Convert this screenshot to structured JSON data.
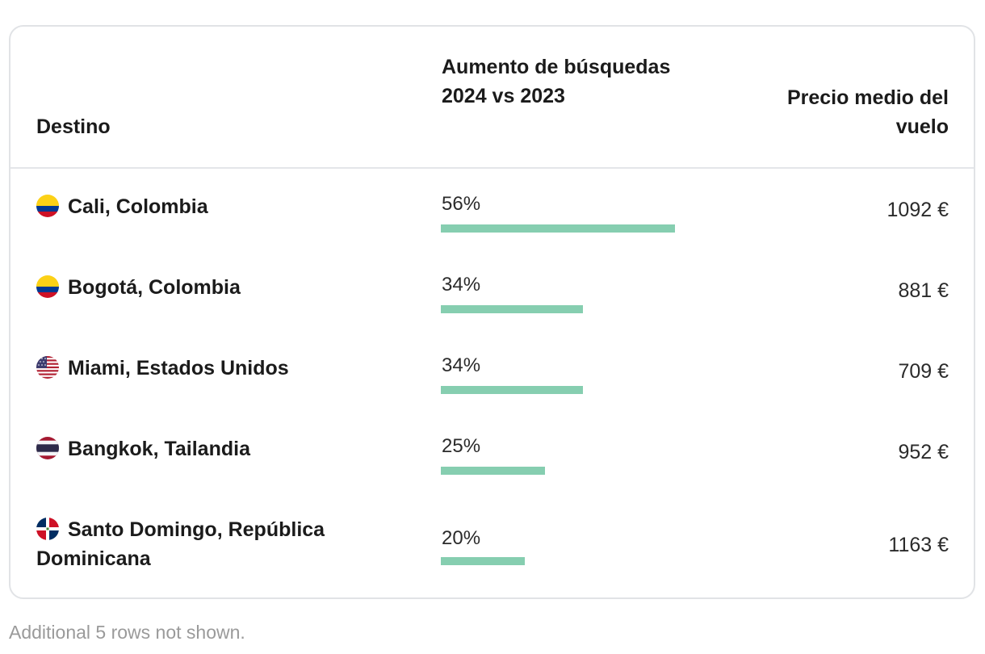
{
  "table": {
    "headers": {
      "destination": "Destino",
      "increase": "Aumento de búsquedas 2024 vs 2023",
      "price": "Precio medio del vuelo"
    },
    "bar_color": "#86ceb0",
    "bar_scale_max_percent": 100,
    "rows": [
      {
        "flag": "colombia-flag-icon",
        "destination": "Cali, Colombia",
        "increase_label": "56%",
        "increase_value": 56,
        "price": "1092 €"
      },
      {
        "flag": "colombia-flag-icon",
        "destination": "Bogotá, Colombia",
        "increase_label": "34%",
        "increase_value": 34,
        "price": "881 €"
      },
      {
        "flag": "usa-flag-icon",
        "destination": "Miami, Estados Unidos",
        "increase_label": "34%",
        "increase_value": 34,
        "price": "709 €"
      },
      {
        "flag": "thailand-flag-icon",
        "destination": "Bangkok, Tailandia",
        "increase_label": "25%",
        "increase_value": 25,
        "price": "952 €"
      },
      {
        "flag": "dominican-republic-flag-icon",
        "destination": "Santo Domingo, República Dominicana",
        "increase_label": "20%",
        "increase_value": 20,
        "price": "1163 €"
      }
    ]
  },
  "footnote": "Additional 5 rows not shown."
}
